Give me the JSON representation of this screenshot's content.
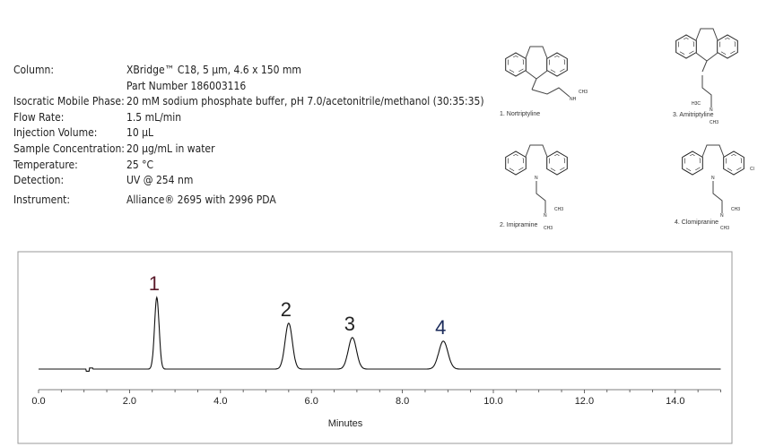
{
  "conditions": [
    {
      "label": "Column:",
      "value": "XBridge™ C18, 5 µm, 4.6 x 150 mm",
      "value2": "Part Number 186003116"
    },
    {
      "label": "Isocratic Mobile Phase:",
      "value": "20 mM sodium phosphate buffer, pH 7.0/acetonitrile/methanol (30:35:35)"
    },
    {
      "label": "Flow Rate:",
      "value": "1.5 mL/min"
    },
    {
      "label": "Injection Volume:",
      "value": "10 µL"
    },
    {
      "label": "Sample Concentration:",
      "value": "20 µg/mL in water"
    },
    {
      "label": "Temperature:",
      "value": "25 °C"
    },
    {
      "label": "Detection:",
      "value": "UV @ 254 nm"
    },
    {
      "label": "Instrument:",
      "value": "Alliance® 2695 with 2996 PDA"
    }
  ],
  "compounds": [
    {
      "name": "1. Nortriptyline",
      "groups": [
        "NH",
        "CH3"
      ]
    },
    {
      "name": "2. Imipramine",
      "groups": [
        "N",
        "N",
        "CH3",
        "CH3"
      ]
    },
    {
      "name": "3. Amitriptyline",
      "groups": [
        "H3C",
        "N",
        "CH3"
      ]
    },
    {
      "name": "4. Clomipranine",
      "groups": [
        "N",
        "Cl",
        "N",
        "CH3",
        "CH3"
      ]
    }
  ],
  "chart_data": {
    "type": "line",
    "xlabel": "Minutes",
    "ylabel": "",
    "xlim": [
      0,
      15
    ],
    "xticks": [
      "0.0",
      "2.0",
      "4.0",
      "6.0",
      "8.0",
      "10.0",
      "12.0",
      "14.0"
    ],
    "grid": false,
    "peaks": [
      {
        "label": "1",
        "rt": 2.6,
        "height": 1.0,
        "width": 0.05
      },
      {
        "label": "2",
        "rt": 5.5,
        "height": 0.64,
        "width": 0.08
      },
      {
        "label": "3",
        "rt": 6.9,
        "height": 0.44,
        "width": 0.09
      },
      {
        "label": "4",
        "rt": 8.9,
        "height": 0.39,
        "width": 0.1
      }
    ],
    "peak_label_colors": [
      "#5a1a2a",
      "#222222",
      "#222222",
      "#1a2a5a"
    ]
  }
}
